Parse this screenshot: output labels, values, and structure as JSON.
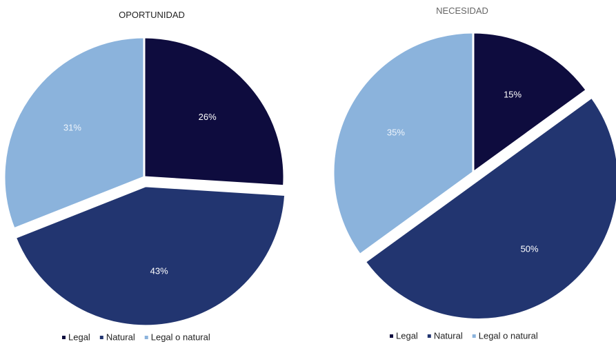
{
  "colors": {
    "Legal": "#0e0c3e",
    "Natural": "#223570",
    "Legal o natural": "#8bb3dc"
  },
  "chart_data": [
    {
      "type": "pie",
      "title": "OPORTUNIDAD",
      "categories": [
        "Legal",
        "Natural",
        "Legal o natural"
      ],
      "values": [
        26,
        43,
        31
      ],
      "labels": [
        "26%",
        "43%",
        "31%"
      ],
      "exploded": [
        "Natural"
      ],
      "legend": "bottom"
    },
    {
      "type": "pie",
      "title": "NECESIDAD",
      "categories": [
        "Legal",
        "Natural",
        "Legal o natural"
      ],
      "values": [
        15,
        50,
        35
      ],
      "labels": [
        "15%",
        "50%",
        "35%"
      ],
      "exploded": [
        "Natural"
      ],
      "legend": "bottom"
    }
  ]
}
